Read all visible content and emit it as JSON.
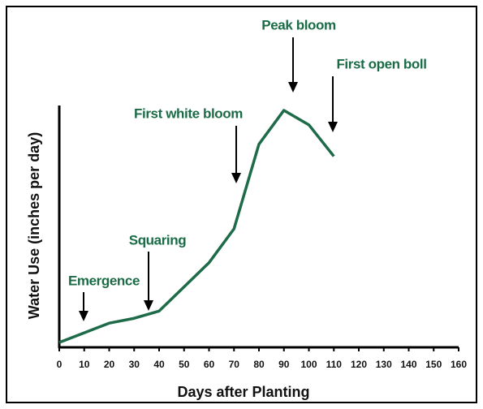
{
  "chart_data": {
    "type": "line",
    "xlabel": "Days after Planting",
    "ylabel": "Water Use (inches per day)",
    "x": [
      0,
      10,
      15,
      20,
      30,
      40,
      50,
      60,
      70,
      80,
      90,
      100,
      110
    ],
    "series": [
      {
        "name": "Water use",
        "color": "#1e6b4a",
        "values": [
          2,
          6,
          8,
          10,
          12,
          15,
          25,
          35,
          49,
          84,
          98,
          92,
          79
        ]
      }
    ],
    "xlim": [
      0,
      160
    ],
    "xticks": [
      0,
      10,
      20,
      30,
      40,
      50,
      60,
      70,
      80,
      90,
      100,
      110,
      120,
      130,
      140,
      150,
      160
    ],
    "ylim": [
      0,
      100
    ],
    "annotations": [
      "Emergence",
      "Squaring",
      "First white bloom",
      "Peak bloom",
      "First open boll"
    ]
  }
}
